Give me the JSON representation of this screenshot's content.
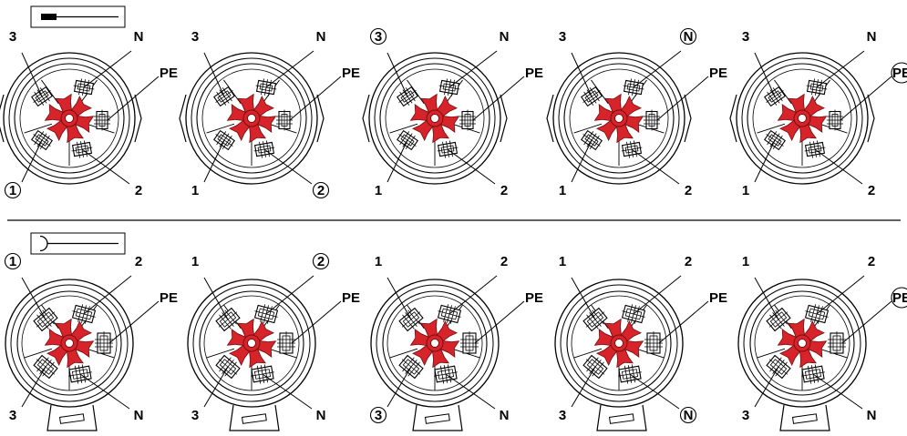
{
  "top_row": {
    "legend_icon": "pin-connector-icon",
    "connectors": [
      {
        "labels": {
          "top_left": "3",
          "top_right": "N",
          "right": "PE",
          "bottom_left": "1",
          "bottom_right": "2"
        },
        "circled": "1"
      },
      {
        "labels": {
          "top_left": "3",
          "top_right": "N",
          "right": "PE",
          "bottom_left": "1",
          "bottom_right": "2"
        },
        "circled": "2"
      },
      {
        "labels": {
          "top_left": "3",
          "top_right": "N",
          "right": "PE",
          "bottom_left": "1",
          "bottom_right": "2"
        },
        "circled": "3"
      },
      {
        "labels": {
          "top_left": "3",
          "top_right": "N",
          "right": "PE",
          "bottom_left": "1",
          "bottom_right": "2"
        },
        "circled": "N"
      },
      {
        "labels": {
          "top_left": "3",
          "top_right": "N",
          "right": "PE",
          "bottom_left": "1",
          "bottom_right": "2"
        },
        "circled": "PE"
      }
    ]
  },
  "bottom_row": {
    "legend_icon": "socket-connector-icon",
    "connectors": [
      {
        "labels": {
          "top_left": "1",
          "top_right": "2",
          "right": "PE",
          "bottom_left": "3",
          "bottom_right": "N"
        },
        "circled": "1"
      },
      {
        "labels": {
          "top_left": "1",
          "top_right": "2",
          "right": "PE",
          "bottom_left": "3",
          "bottom_right": "N"
        },
        "circled": "2"
      },
      {
        "labels": {
          "top_left": "1",
          "top_right": "2",
          "right": "PE",
          "bottom_left": "3",
          "bottom_right": "N"
        },
        "circled": "3"
      },
      {
        "labels": {
          "top_left": "1",
          "top_right": "2",
          "right": "PE",
          "bottom_left": "3",
          "bottom_right": "N"
        },
        "circled": "N"
      },
      {
        "labels": {
          "top_left": "1",
          "top_right": "2",
          "right": "PE",
          "bottom_left": "3",
          "bottom_right": "N"
        },
        "circled": "PE"
      }
    ]
  },
  "colors": {
    "highlight": "#d6242a",
    "line": "#000000"
  }
}
